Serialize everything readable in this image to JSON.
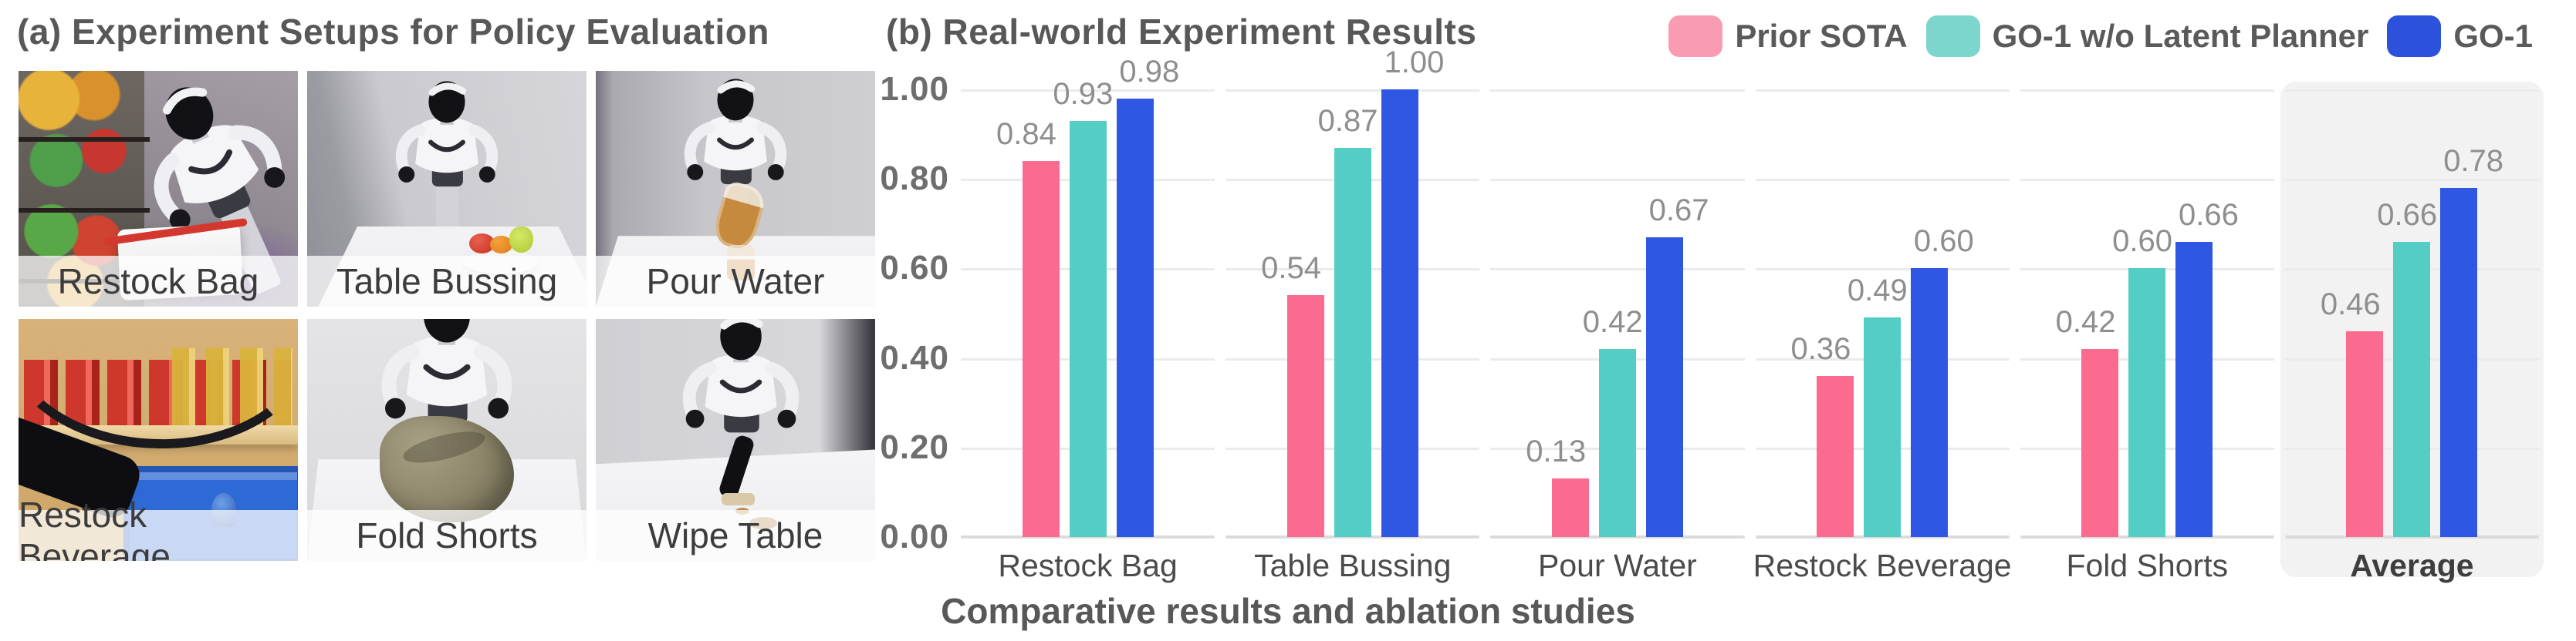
{
  "panel_a": {
    "title": "(a) Experiment Setups for Policy Evaluation",
    "photos": [
      {
        "label": "Restock Bag"
      },
      {
        "label": "Table Bussing"
      },
      {
        "label": "Pour Water"
      },
      {
        "label": "Restock Beverage"
      },
      {
        "label": "Fold Shorts"
      },
      {
        "label": "Wipe Table"
      }
    ]
  },
  "panel_b": {
    "title": "(b) Real-world Experiment Results",
    "caption": "Comparative results and ablation studies"
  },
  "legend": [
    {
      "label": "Prior SOTA",
      "swatch_color": "#F89BB3"
    },
    {
      "label": "GO-1 w/o Latent Planner",
      "swatch_color": "#7CD6CD"
    },
    {
      "label": "GO-1",
      "swatch_color": "#2C52DB"
    }
  ],
  "chart_data": {
    "type": "bar",
    "title": "(b) Real-world Experiment Results",
    "categories": [
      "Restock Bag",
      "Table Bussing",
      "Pour Water",
      "Restock Beverage",
      "Fold Shorts",
      "Average"
    ],
    "series": [
      {
        "name": "Prior SOTA",
        "color": "#FB6B90",
        "values": [
          0.84,
          0.54,
          0.13,
          0.36,
          0.42,
          0.46
        ]
      },
      {
        "name": "GO-1 w/o Latent Planner",
        "color": "#54CEC4",
        "values": [
          0.93,
          0.87,
          0.42,
          0.49,
          0.6,
          0.66
        ]
      },
      {
        "name": "GO-1",
        "color": "#3057E3",
        "values": [
          0.98,
          1.0,
          0.67,
          0.6,
          0.66,
          0.78
        ]
      }
    ],
    "ylim": [
      0,
      1
    ],
    "yticks": [
      "1.00",
      "0.80",
      "0.60",
      "0.40",
      "0.20",
      "0.00"
    ],
    "grid": "horizontal",
    "legend_position": "top-right",
    "highlight_category": "Average",
    "value_label_format": "0.00",
    "xlabel": "",
    "ylabel": "",
    "caption": "Comparative results and ablation studies"
  }
}
